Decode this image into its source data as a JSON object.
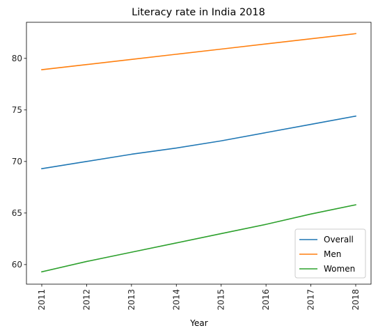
{
  "chart_data": {
    "type": "line",
    "title": "Literacy rate in India 2018",
    "xlabel": "Year",
    "ylabel": "",
    "x": [
      2011,
      2012,
      2013,
      2014,
      2015,
      2016,
      2017,
      2018
    ],
    "xticks": [
      "2011",
      "2012",
      "2013",
      "2014",
      "2015",
      "2016",
      "2017",
      "2018"
    ],
    "yticks": [
      "60",
      "65",
      "70",
      "75",
      "80"
    ],
    "ylim": [
      58.1,
      83.5
    ],
    "grid": false,
    "legend_position": "lower right",
    "series": [
      {
        "name": "Overall",
        "color": "#1f77b4",
        "values": [
          69.3,
          70.0,
          70.7,
          71.3,
          72.0,
          72.8,
          73.6,
          74.4
        ]
      },
      {
        "name": "Men",
        "color": "#ff7f0e",
        "values": [
          78.9,
          79.4,
          79.9,
          80.4,
          80.9,
          81.4,
          81.9,
          82.4
        ]
      },
      {
        "name": "Women",
        "color": "#2ca02c",
        "values": [
          59.3,
          60.3,
          61.2,
          62.1,
          63.0,
          63.9,
          64.9,
          65.8
        ]
      }
    ]
  }
}
